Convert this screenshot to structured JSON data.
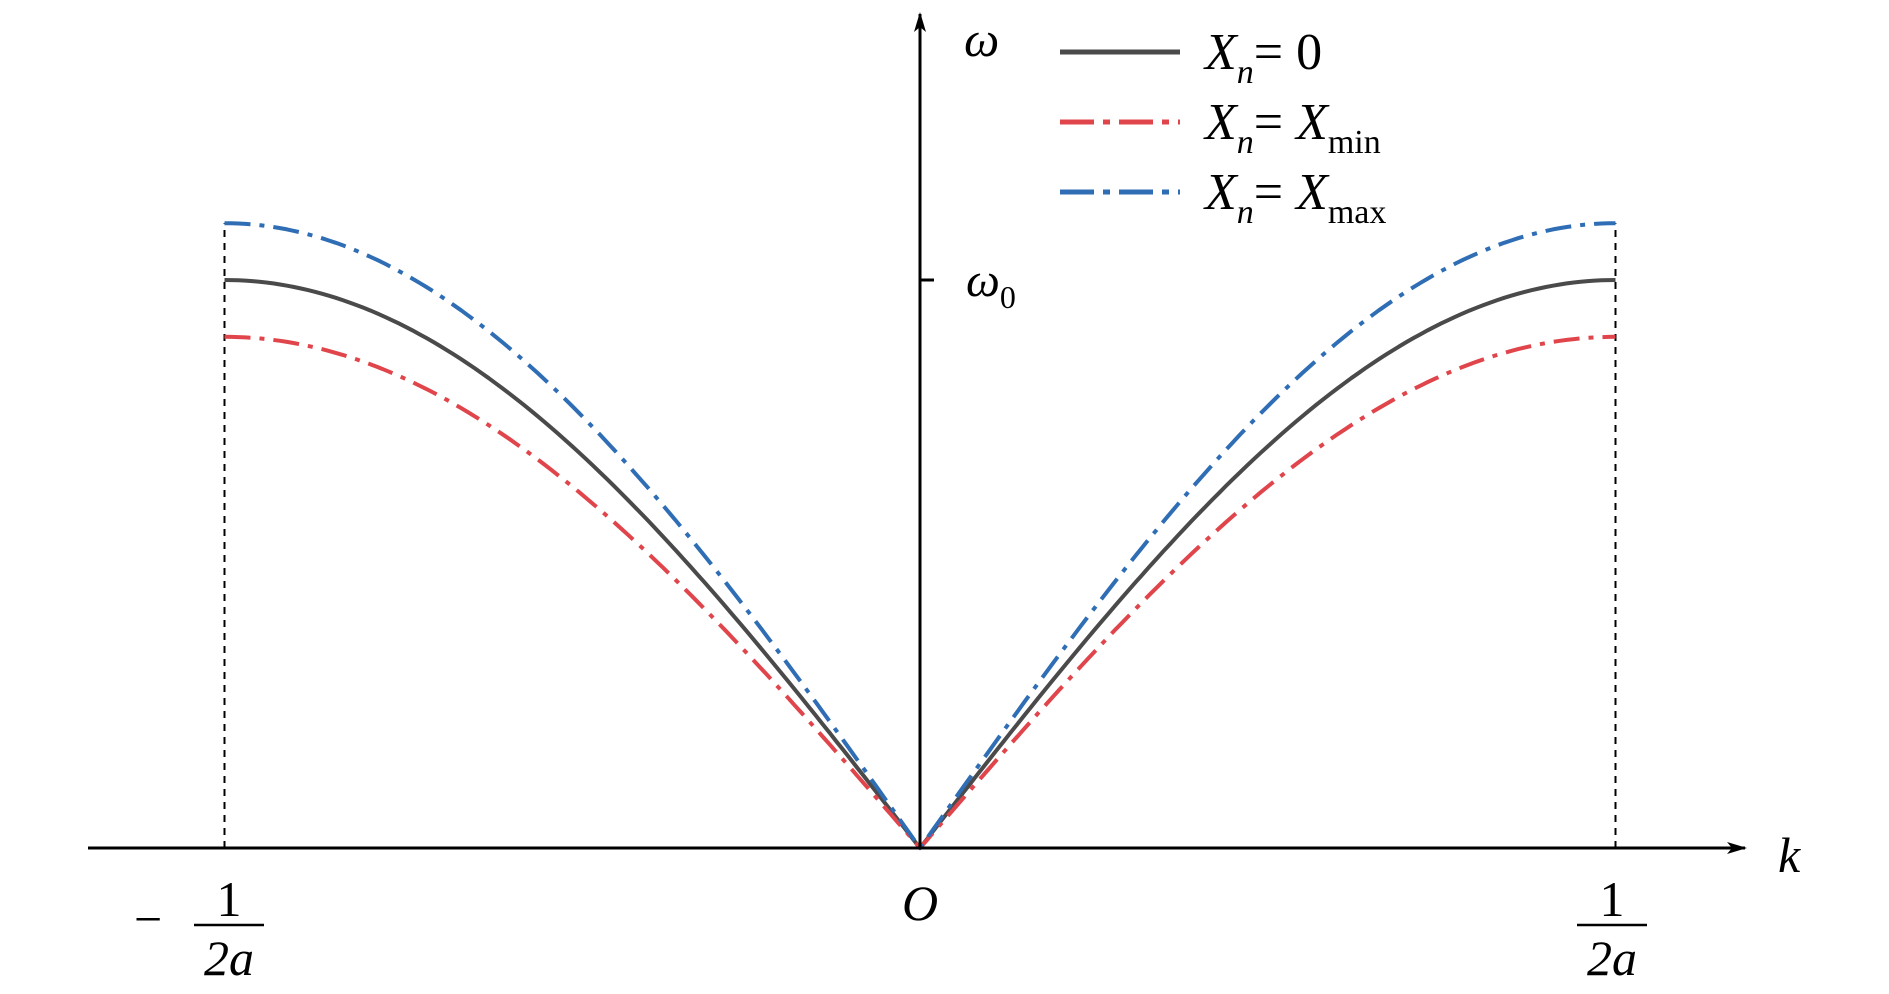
{
  "chart_data": {
    "type": "line",
    "xlabel": "k",
    "ylabel": "ω",
    "origin_label": "O",
    "y_tick": {
      "label": "ω",
      "subscript": "0",
      "value": 1.0
    },
    "x_ticks": [
      {
        "value": -0.5,
        "sign": "−",
        "numerator": "1",
        "denominator": "2a"
      },
      {
        "value": 0.5,
        "sign": "",
        "numerator": "1",
        "denominator": "2a"
      }
    ],
    "xlim": [
      -0.5,
      0.5
    ],
    "ylim": [
      0,
      1.1
    ],
    "grid": false,
    "legend_position": "top-right",
    "series": [
      {
        "legend": {
          "var": "X",
          "sub": "n",
          "rel": "= ",
          "rhs": "0",
          "rhs_sub": ""
        },
        "color": "#4a4a4a",
        "style": "solid",
        "amplitude": 1.0,
        "x": [
          -0.5,
          -0.45,
          -0.4,
          -0.35,
          -0.3,
          -0.25,
          -0.2,
          -0.15,
          -0.1,
          -0.05,
          0,
          0.05,
          0.1,
          0.15,
          0.2,
          0.25,
          0.3,
          0.35,
          0.4,
          0.45,
          0.5
        ],
        "y": [
          1.0,
          0.988,
          0.951,
          0.891,
          0.809,
          0.707,
          0.588,
          0.454,
          0.309,
          0.156,
          0,
          0.156,
          0.309,
          0.454,
          0.588,
          0.707,
          0.809,
          0.891,
          0.951,
          0.988,
          1.0
        ]
      },
      {
        "legend": {
          "var": "X",
          "sub": "n",
          "rel": "= ",
          "rhs": "X",
          "rhs_sub": "min"
        },
        "color": "#e0454b",
        "style": "dashdot",
        "amplitude": 0.9,
        "x": [
          -0.5,
          -0.45,
          -0.4,
          -0.35,
          -0.3,
          -0.25,
          -0.2,
          -0.15,
          -0.1,
          -0.05,
          0,
          0.05,
          0.1,
          0.15,
          0.2,
          0.25,
          0.3,
          0.35,
          0.4,
          0.45,
          0.5
        ],
        "y": [
          0.9,
          0.889,
          0.856,
          0.802,
          0.728,
          0.636,
          0.529,
          0.409,
          0.278,
          0.141,
          0,
          0.141,
          0.278,
          0.409,
          0.529,
          0.636,
          0.728,
          0.802,
          0.856,
          0.889,
          0.9
        ]
      },
      {
        "legend": {
          "var": "X",
          "sub": "n",
          "rel": "= ",
          "rhs": "X",
          "rhs_sub": "max"
        },
        "color": "#2f6eb5",
        "style": "dashdot",
        "amplitude": 1.1,
        "x": [
          -0.5,
          -0.45,
          -0.4,
          -0.35,
          -0.3,
          -0.25,
          -0.2,
          -0.15,
          -0.1,
          -0.05,
          0,
          0.05,
          0.1,
          0.15,
          0.2,
          0.25,
          0.3,
          0.35,
          0.4,
          0.45,
          0.5
        ],
        "y": [
          1.1,
          1.086,
          1.046,
          0.98,
          0.89,
          0.778,
          0.647,
          0.499,
          0.34,
          0.172,
          0,
          0.172,
          0.34,
          0.499,
          0.647,
          0.778,
          0.89,
          0.98,
          1.046,
          1.086,
          1.1
        ]
      }
    ]
  }
}
